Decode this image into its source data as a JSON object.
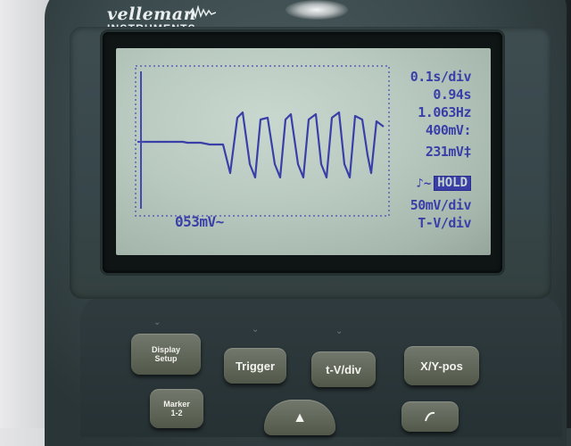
{
  "brand": {
    "name": "velleman",
    "sub": "INSTRUMENTS"
  },
  "readouts": {
    "timebase": "0.1s/div",
    "time": "0.94s",
    "frequency": "1.063Hz",
    "voltage": "400mV:",
    "voltage2": "231mV‡",
    "hold": "HOLD",
    "hold_prefix": "♪~",
    "vdiv": "50mV/div",
    "mode": "T-V/div"
  },
  "bottom_reading": "053mV~",
  "buttons": {
    "display_setup": {
      "line1": "Display",
      "line2": "Setup",
      "dots": "•"
    },
    "trigger": "Trigger",
    "tvdiv": "t-V/div",
    "xypos": "X/Y-pos",
    "marker": {
      "line1": "Marker",
      "line2": "1-2"
    },
    "up_arrow": "▲"
  },
  "colors": {
    "lcd": "#b8c9c0",
    "trace": "#3a3fa8",
    "body": "#3b4a4d",
    "button": "#5f6658"
  }
}
